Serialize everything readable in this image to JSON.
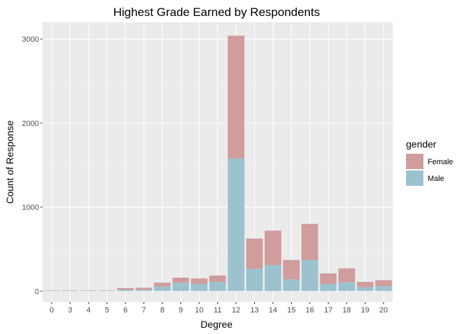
{
  "chart_data": {
    "type": "bar",
    "stacked": true,
    "title": "Highest Grade Earned by Respondents",
    "xlabel": "Degree",
    "ylabel": "Count of Response",
    "categories": [
      "0",
      "3",
      "4",
      "5",
      "6",
      "7",
      "8",
      "9",
      "10",
      "11",
      "12",
      "13",
      "14",
      "15",
      "16",
      "17",
      "18",
      "19",
      "20"
    ],
    "series": [
      {
        "name": "Female",
        "color": "#d09c9c",
        "values": [
          5,
          5,
          5,
          5,
          20,
          25,
          45,
          60,
          65,
          75,
          1460,
          360,
          410,
          230,
          430,
          125,
          165,
          65,
          70
        ]
      },
      {
        "name": "Male",
        "color": "#9cc2d0",
        "values": [
          3,
          3,
          3,
          3,
          15,
          15,
          55,
          100,
          85,
          110,
          1580,
          265,
          310,
          140,
          370,
          85,
          105,
          45,
          60
        ]
      }
    ],
    "ylim": [
      -130,
      3200
    ],
    "yticks": [
      0,
      1000,
      2000,
      3000
    ],
    "grid": true,
    "legend": {
      "title": "gender",
      "placement": "right"
    }
  }
}
